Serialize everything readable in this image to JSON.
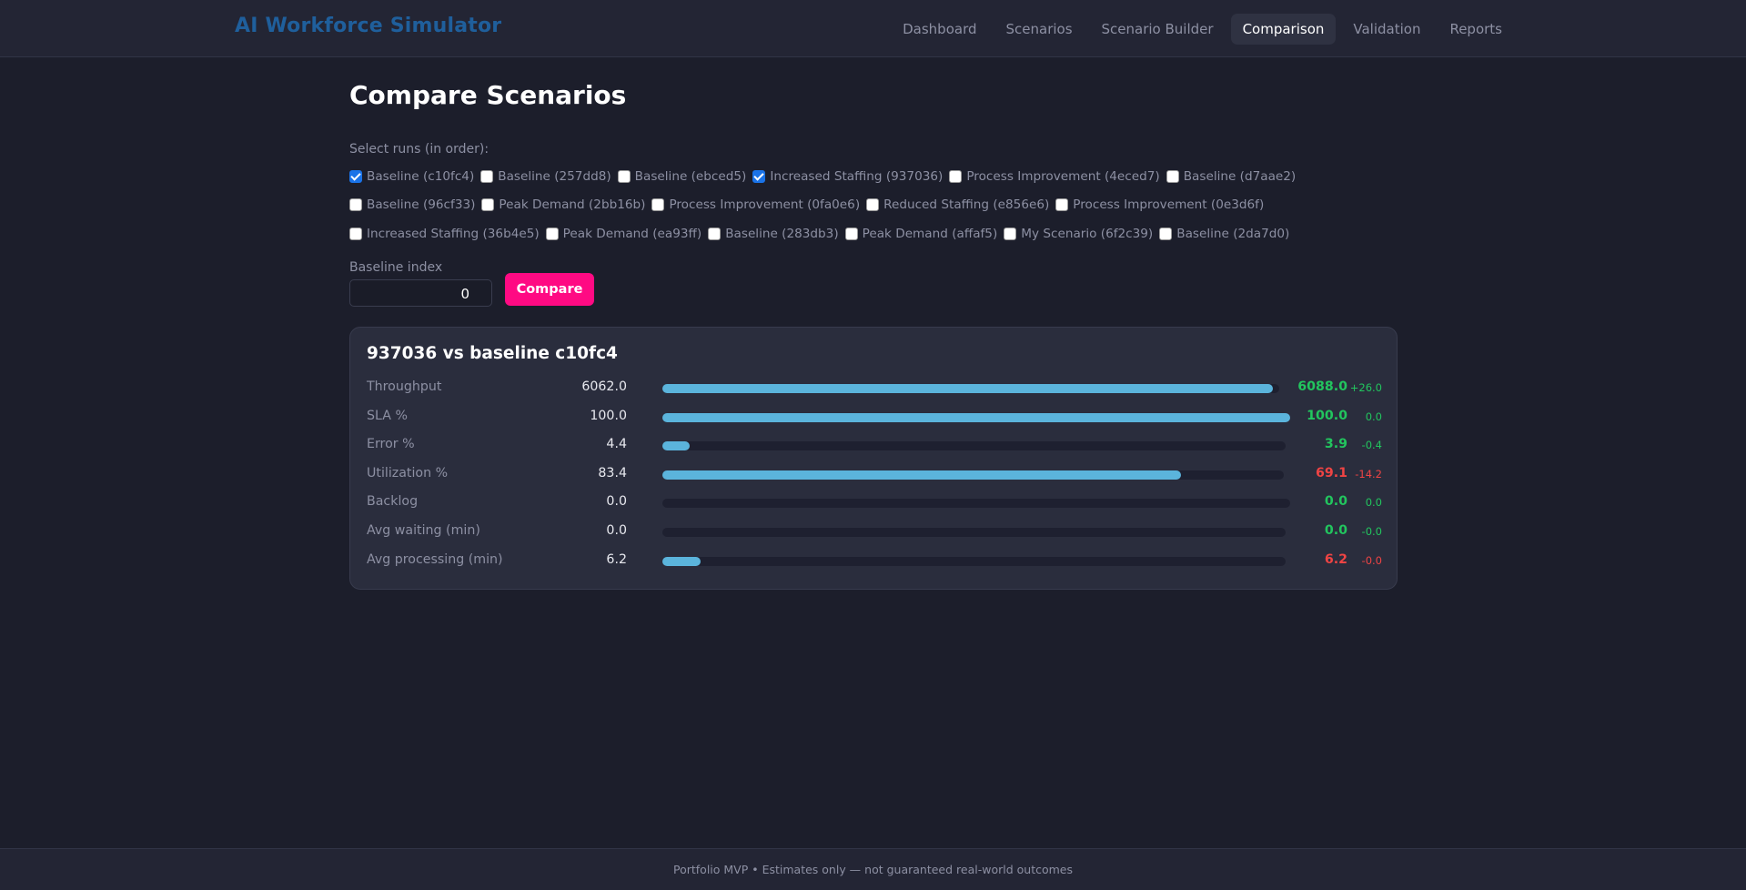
{
  "app": {
    "title": "AI Workforce Simulator"
  },
  "nav": {
    "items": [
      {
        "label": "Dashboard",
        "active": false
      },
      {
        "label": "Scenarios",
        "active": false
      },
      {
        "label": "Scenario Builder",
        "active": false
      },
      {
        "label": "Comparison",
        "active": true
      },
      {
        "label": "Validation",
        "active": false
      },
      {
        "label": "Reports",
        "active": false
      }
    ]
  },
  "page": {
    "title": "Compare Scenarios"
  },
  "runs": {
    "label": "Select runs (in order):",
    "rows": [
      [
        {
          "label": "Baseline (c10fc4)",
          "checked": true
        },
        {
          "label": "Baseline (257dd8)",
          "checked": false
        },
        {
          "label": "Baseline (ebced5)",
          "checked": false
        },
        {
          "label": "Increased Staffing (937036)",
          "checked": true
        },
        {
          "label": "Process Improvement (4eced7)",
          "checked": false
        },
        {
          "label": "Baseline (d7aae2)",
          "checked": false
        }
      ],
      [
        {
          "label": "Baseline (96cf33)",
          "checked": false
        },
        {
          "label": "Peak Demand (2bb16b)",
          "checked": false
        },
        {
          "label": "Process Improvement (0fa0e6)",
          "checked": false
        },
        {
          "label": "Reduced Staffing (e856e6)",
          "checked": false
        },
        {
          "label": "Process Improvement (0e3d6f)",
          "checked": false
        }
      ],
      [
        {
          "label": "Increased Staffing (36b4e5)",
          "checked": false
        },
        {
          "label": "Peak Demand (ea93ff)",
          "checked": false
        },
        {
          "label": "Baseline (283db3)",
          "checked": false
        },
        {
          "label": "Peak Demand (affaf5)",
          "checked": false
        },
        {
          "label": "My Scenario (6f2c39)",
          "checked": false
        },
        {
          "label": "Baseline (2da7d0)",
          "checked": false
        }
      ]
    ]
  },
  "baseline_index": {
    "label": "Baseline index",
    "value": "0"
  },
  "compare_button": {
    "label": "Compare"
  },
  "comparison": {
    "title": "937036 vs baseline c10fc4",
    "metrics": [
      {
        "label": "Throughput",
        "baseline": "6062.0",
        "value": "6088.0",
        "delta": "+26.0",
        "value_color": "pos",
        "delta_color": "pos",
        "bar_fraction": 0.99
      },
      {
        "label": "SLA %",
        "baseline": "100.0",
        "value": "100.0",
        "delta": "0.0",
        "value_color": "pos",
        "delta_color": "pos",
        "bar_fraction": 1.0
      },
      {
        "label": "Error %",
        "baseline": "4.4",
        "value": "3.9",
        "delta": "-0.4",
        "value_color": "pos",
        "delta_color": "pos",
        "bar_fraction": 0.044
      },
      {
        "label": "Utilization %",
        "baseline": "83.4",
        "value": "69.1",
        "delta": "-14.2",
        "value_color": "neg",
        "delta_color": "neg",
        "bar_fraction": 0.834
      },
      {
        "label": "Backlog",
        "baseline": "0.0",
        "value": "0.0",
        "delta": "0.0",
        "value_color": "pos",
        "delta_color": "pos",
        "bar_fraction": 0.0
      },
      {
        "label": "Avg waiting (min)",
        "baseline": "0.0",
        "value": "0.0",
        "delta": "-0.0",
        "value_color": "pos",
        "delta_color": "pos",
        "bar_fraction": 0.0
      },
      {
        "label": "Avg processing (min)",
        "baseline": "6.2",
        "value": "6.2",
        "delta": "-0.0",
        "value_color": "neg",
        "delta_color": "neg",
        "bar_fraction": 0.062
      }
    ]
  },
  "footer": {
    "text": "Portfolio MVP • Estimates only — not guaranteed real-world outcomes"
  },
  "colors": {
    "background": "#1c1e2b",
    "brand": "#1f5f9c",
    "accent": "#ff0a83",
    "bar": "#5bb4dc",
    "positive": "#22c55e",
    "negative": "#ef4444"
  }
}
